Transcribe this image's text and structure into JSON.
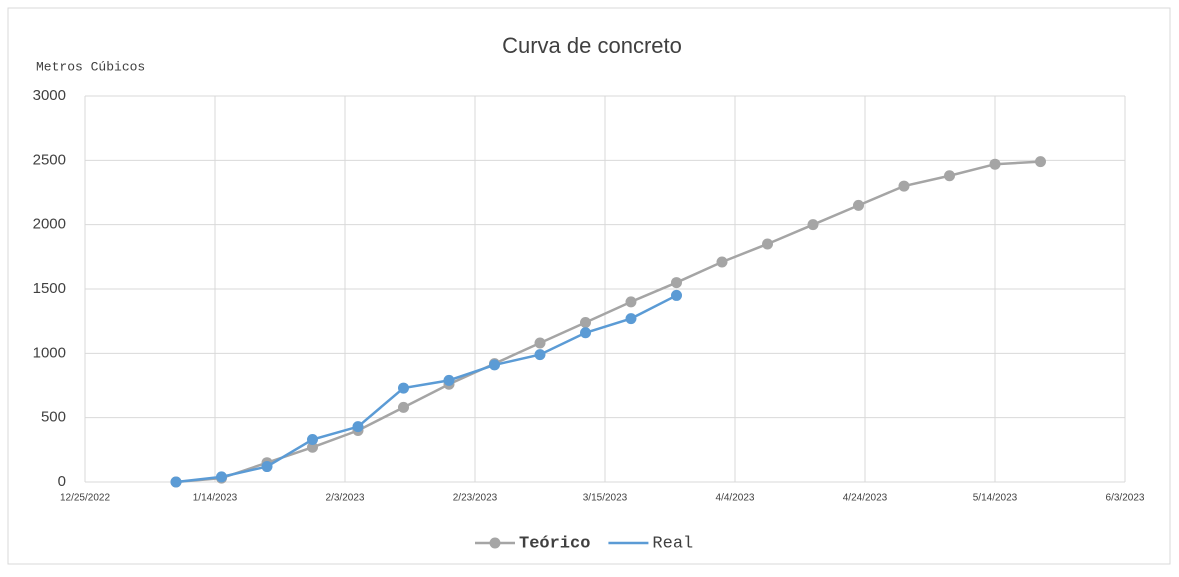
{
  "chart_data": {
    "type": "line",
    "title": "Curva de concreto",
    "y_label": "Metros Cúbicos",
    "x": [
      "1/8/2023",
      "1/15/2023",
      "1/22/2023",
      "1/29/2023",
      "2/5/2023",
      "2/12/2023",
      "2/19/2023",
      "2/26/2023",
      "3/5/2023",
      "3/12/2023",
      "3/19/2023",
      "3/26/2023",
      "4/2/2023",
      "4/9/2023",
      "4/16/2023",
      "4/23/2023",
      "4/30/2023",
      "5/7/2023",
      "5/14/2023",
      "5/21/2023"
    ],
    "series": [
      {
        "name": "Teórico",
        "color": "#a5a5a5",
        "values": [
          0,
          30,
          150,
          270,
          400,
          580,
          760,
          920,
          1080,
          1240,
          1400,
          1550,
          1710,
          1850,
          2000,
          2150,
          2300,
          2380,
          2470,
          2490
        ]
      },
      {
        "name": "Real",
        "color": "#5b9bd5",
        "values": [
          0,
          40,
          120,
          330,
          430,
          730,
          790,
          910,
          990,
          1160,
          1270,
          1450,
          null,
          null,
          null,
          null,
          null,
          null,
          null,
          null
        ]
      }
    ],
    "xlim": [
      "12/25/2022",
      "6/3/2023"
    ],
    "xticks": [
      "12/25/2022",
      "1/14/2023",
      "2/3/2023",
      "2/23/2023",
      "3/15/2023",
      "4/4/2023",
      "4/24/2023",
      "5/14/2023",
      "6/3/2023"
    ],
    "ylim": [
      0,
      3000
    ],
    "yticks": [
      0,
      500,
      1000,
      1500,
      2000,
      2500,
      3000
    ],
    "grid": true,
    "legend": "bottom"
  }
}
